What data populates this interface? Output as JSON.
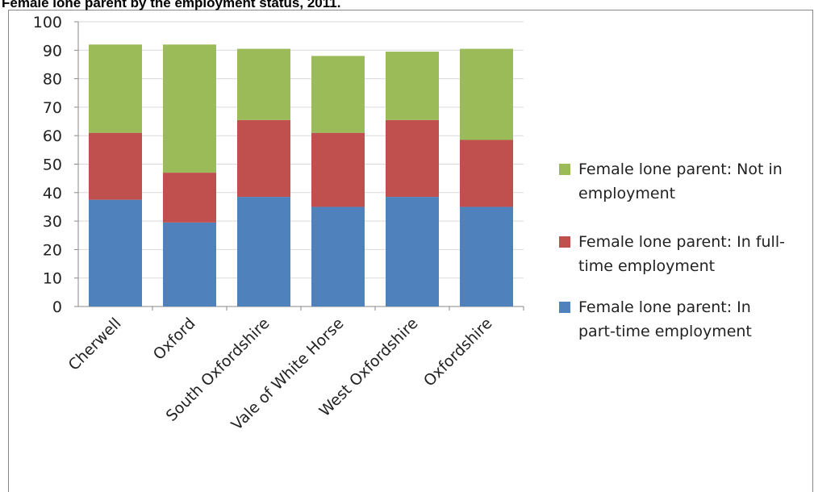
{
  "chart_data": {
    "type": "stacked-bar",
    "title": "Female lone parent by the employment status, 2011.",
    "categories": [
      "Cherwell",
      "Oxford",
      "South Oxfordshire",
      "Vale of White Horse",
      "West Oxfordshire",
      "Oxfordshire"
    ],
    "series": [
      {
        "name": "Female lone parent: In part-time employment",
        "color": "#4f81bd",
        "values": [
          37.5,
          29.5,
          38.5,
          35,
          38.5,
          35
        ]
      },
      {
        "name": "Female lone parent: In full-time employment",
        "color": "#c0504d",
        "values": [
          23.5,
          17.5,
          27,
          26,
          27,
          23.5
        ]
      },
      {
        "name": "Female lone parent: Not in employment",
        "color": "#9bbb59",
        "values": [
          31,
          45,
          25,
          27,
          24,
          32
        ]
      }
    ],
    "ylim": [
      0,
      100
    ],
    "yticks": [
      0,
      10,
      20,
      30,
      40,
      50,
      60,
      70,
      80,
      90,
      100
    ],
    "grid": true
  }
}
